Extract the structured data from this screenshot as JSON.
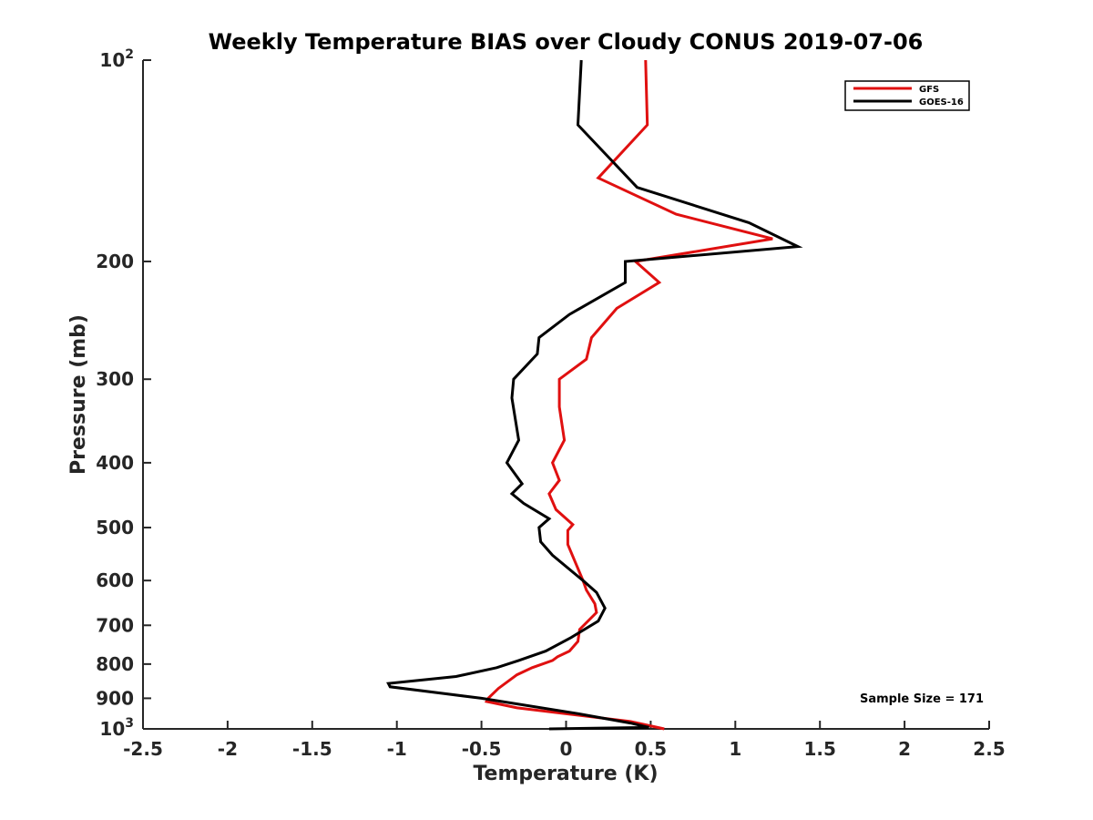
{
  "chart_data": {
    "type": "line",
    "title": "Weekly Temperature BIAS over Cloudy CONUS 2019-07-06",
    "xlabel": "Temperature (K)",
    "ylabel": "Pressure (mb)",
    "xlim": [
      -2.5,
      2.5
    ],
    "ylim": [
      100,
      1000
    ],
    "yscale": "log",
    "y_reversed": true,
    "grid": false,
    "x_ticks": [
      {
        "value": -2.5,
        "label": "-2.5"
      },
      {
        "value": -2,
        "label": "-2"
      },
      {
        "value": -1.5,
        "label": "-1.5"
      },
      {
        "value": -1,
        "label": "-1"
      },
      {
        "value": -0.5,
        "label": "-0.5"
      },
      {
        "value": 0,
        "label": "0"
      },
      {
        "value": 0.5,
        "label": "0.5"
      },
      {
        "value": 1,
        "label": "1"
      },
      {
        "value": 1.5,
        "label": "1.5"
      },
      {
        "value": 2,
        "label": "2"
      },
      {
        "value": 2.5,
        "label": "2.5"
      }
    ],
    "y_ticks": [
      {
        "value": 100,
        "base": "10",
        "exp": "2"
      },
      {
        "value": 200,
        "label": "200"
      },
      {
        "value": 300,
        "label": "300"
      },
      {
        "value": 400,
        "label": "400"
      },
      {
        "value": 500,
        "label": "500"
      },
      {
        "value": 600,
        "label": "600"
      },
      {
        "value": 700,
        "label": "700"
      },
      {
        "value": 800,
        "label": "800"
      },
      {
        "value": 900,
        "label": "900"
      },
      {
        "value": 1000,
        "base": "10",
        "exp": "3"
      }
    ],
    "legend_position": "top-right",
    "annotation": "Sample Size = 171",
    "series": [
      {
        "name": "GFS",
        "color": "#e01010",
        "points": [
          [
            0.47,
            100
          ],
          [
            0.48,
            125
          ],
          [
            0.19,
            150
          ],
          [
            0.65,
            170
          ],
          [
            1.22,
            185
          ],
          [
            0.41,
            200
          ],
          [
            0.55,
            215
          ],
          [
            0.3,
            235
          ],
          [
            0.15,
            260
          ],
          [
            0.12,
            280
          ],
          [
            -0.04,
            300
          ],
          [
            -0.04,
            330
          ],
          [
            -0.01,
            370
          ],
          [
            -0.08,
            400
          ],
          [
            -0.04,
            425
          ],
          [
            -0.1,
            445
          ],
          [
            -0.06,
            470
          ],
          [
            0.04,
            495
          ],
          [
            0.01,
            505
          ],
          [
            0.01,
            530
          ],
          [
            0.05,
            560
          ],
          [
            0.1,
            600
          ],
          [
            0.12,
            620
          ],
          [
            0.17,
            650
          ],
          [
            0.18,
            670
          ],
          [
            0.08,
            710
          ],
          [
            0.07,
            740
          ],
          [
            0.02,
            765
          ],
          [
            -0.05,
            780
          ],
          [
            -0.08,
            790
          ],
          [
            -0.2,
            810
          ],
          [
            -0.29,
            830
          ],
          [
            -0.4,
            870
          ],
          [
            -0.46,
            900
          ],
          [
            -0.47,
            910
          ],
          [
            -0.29,
            930
          ],
          [
            0.38,
            975
          ],
          [
            0.58,
            1000
          ]
        ]
      },
      {
        "name": "GOES-16",
        "color": "#000000",
        "points": [
          [
            0.09,
            100
          ],
          [
            0.07,
            125
          ],
          [
            0.42,
            155
          ],
          [
            1.08,
            175
          ],
          [
            1.37,
            190
          ],
          [
            0.35,
            200
          ],
          [
            0.35,
            215
          ],
          [
            0.02,
            240
          ],
          [
            -0.16,
            260
          ],
          [
            -0.17,
            275
          ],
          [
            -0.31,
            300
          ],
          [
            -0.32,
            320
          ],
          [
            -0.28,
            370
          ],
          [
            -0.35,
            400
          ],
          [
            -0.26,
            430
          ],
          [
            -0.32,
            445
          ],
          [
            -0.25,
            460
          ],
          [
            -0.1,
            485
          ],
          [
            -0.16,
            500
          ],
          [
            -0.15,
            525
          ],
          [
            -0.08,
            550
          ],
          [
            0.1,
            600
          ],
          [
            0.18,
            625
          ],
          [
            0.23,
            660
          ],
          [
            0.19,
            690
          ],
          [
            0.03,
            730
          ],
          [
            -0.12,
            765
          ],
          [
            -0.28,
            790
          ],
          [
            -0.41,
            810
          ],
          [
            -0.65,
            835
          ],
          [
            -1.05,
            855
          ],
          [
            -1.04,
            865
          ],
          [
            -0.5,
            900
          ],
          [
            0.08,
            950
          ],
          [
            0.38,
            980
          ],
          [
            0.49,
            995
          ],
          [
            -0.1,
            1000
          ]
        ]
      }
    ]
  }
}
